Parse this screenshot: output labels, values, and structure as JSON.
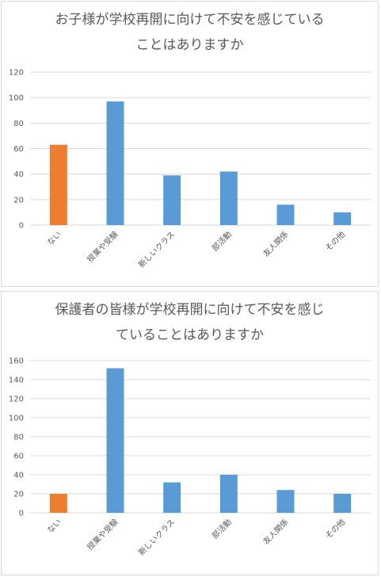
{
  "colors": {
    "highlight": "#ED7D31",
    "bar": "#5B9BD5",
    "grid": "#D9D9D9",
    "text": "#595959"
  },
  "chart_data": [
    {
      "type": "bar",
      "title_line1": "お子様が学校再開に向けて不安を感じている",
      "title_line2": "ことはありますか",
      "categories": [
        "ない",
        "授業や受験",
        "新しいクラス",
        "部活動",
        "友人関係",
        "その他"
      ],
      "values": [
        63,
        97,
        39,
        42,
        16,
        10
      ],
      "highlight_index": 0,
      "ylim": [
        0,
        120
      ],
      "yticks": [
        0,
        20,
        40,
        60,
        80,
        100,
        120
      ],
      "grid": true,
      "legend": "none"
    },
    {
      "type": "bar",
      "title_line1": "保護者の皆様が学校再開に向けて不安を感じ",
      "title_line2": "ていることはありますか",
      "categories": [
        "ない",
        "授業や受験",
        "新しいクラス",
        "部活動",
        "友人関係",
        "その他"
      ],
      "values": [
        20,
        152,
        32,
        40,
        24,
        20
      ],
      "highlight_index": 0,
      "ylim": [
        0,
        160
      ],
      "yticks": [
        0,
        20,
        40,
        60,
        80,
        100,
        120,
        140,
        160
      ],
      "grid": true,
      "legend": "none"
    }
  ]
}
